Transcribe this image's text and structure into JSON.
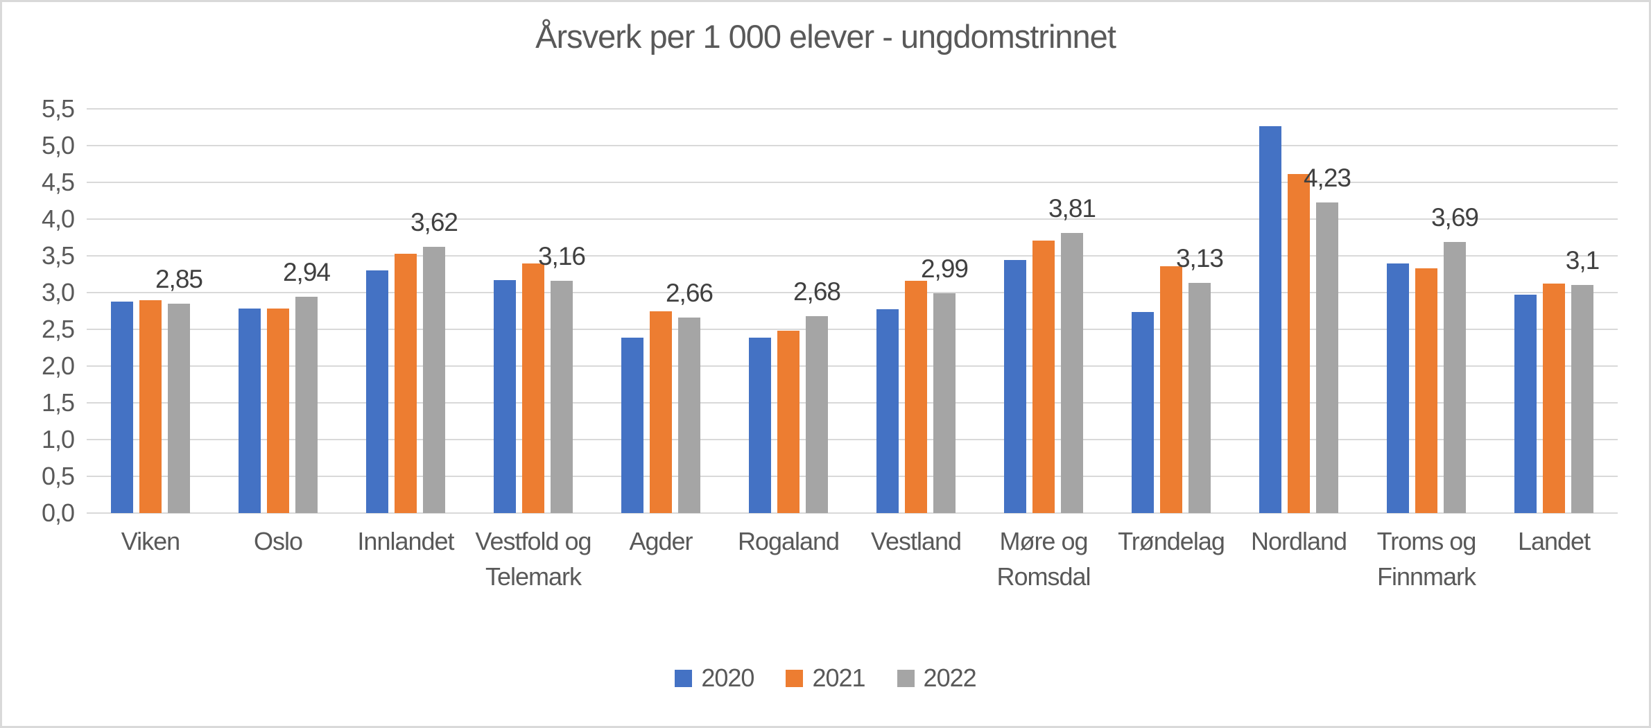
{
  "chart": {
    "title": "Årsverk per 1 000 elever - ungdomstrinnet"
  },
  "chart_data": {
    "type": "bar",
    "title": "Årsverk per 1 000 elever - ungdomstrinnet",
    "categories": [
      "Viken",
      "Oslo",
      "Innlandet",
      "Vestfold og Telemark",
      "Agder",
      "Rogaland",
      "Vestland",
      "Møre og Romsdal",
      "Trøndelag",
      "Nordland",
      "Troms og Finnmark",
      "Landet"
    ],
    "series": [
      {
        "name": "2020",
        "color": "#4472C4",
        "values": [
          2.88,
          2.78,
          3.3,
          3.17,
          2.39,
          2.39,
          2.77,
          3.44,
          2.74,
          5.26,
          3.4,
          2.97
        ]
      },
      {
        "name": "2021",
        "color": "#ED7D31",
        "values": [
          2.9,
          2.78,
          3.53,
          3.4,
          2.75,
          2.48,
          3.16,
          3.71,
          3.36,
          4.61,
          3.33,
          3.12
        ]
      },
      {
        "name": "2022",
        "color": "#A5A5A5",
        "values": [
          2.85,
          2.94,
          3.62,
          3.16,
          2.66,
          2.68,
          2.99,
          3.81,
          3.13,
          4.23,
          3.69,
          3.1
        ]
      }
    ],
    "data_labels": {
      "labeled_series": "2022",
      "values": [
        "2,85",
        "2,94",
        "3,62",
        "3,16",
        "2,66",
        "2,68",
        "2,99",
        "3,81",
        "3,13",
        "4,23",
        "3,69",
        "3,1"
      ]
    },
    "ylim": [
      0,
      5.5
    ],
    "ytick_step": 0.5,
    "ytick_labels": [
      "0,0",
      "0,5",
      "1,0",
      "1,5",
      "2,0",
      "2,5",
      "3,0",
      "3,5",
      "4,0",
      "4,5",
      "5,0",
      "5,5"
    ],
    "xlabel": "",
    "ylabel": "",
    "grid": "horizontal",
    "legend_position": "bottom",
    "colors": {
      "series_2020": "#4472C4",
      "series_2021": "#ED7D31",
      "series_2022": "#A5A5A5",
      "gridline": "#D9D9D9",
      "axis_text": "#595959",
      "title_text": "#595959",
      "data_label_text": "#404040",
      "border": "#D9D9D9",
      "background": "#FFFFFF"
    }
  }
}
